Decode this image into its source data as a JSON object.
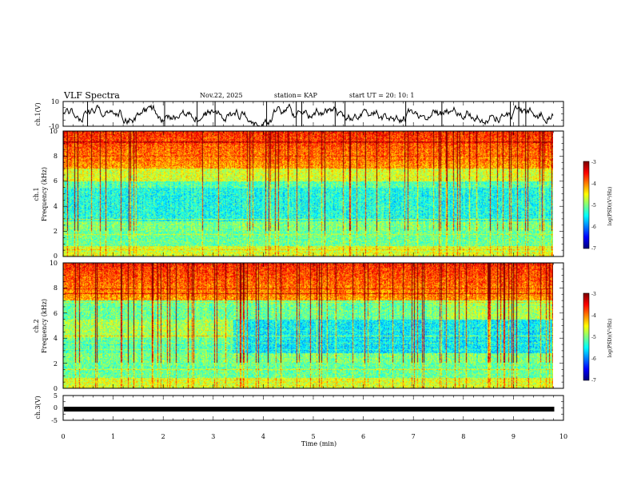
{
  "header": {
    "title": "VLF Spectra",
    "date": "Nov.22, 2025",
    "station": "station= KAP",
    "start": "start  UT  =   20: 10: 1"
  },
  "chart_data": [
    {
      "type": "line",
      "id": "ch1-waveform",
      "ylabel": "ch.1(V)",
      "ylim": [
        -10,
        10
      ],
      "yticks": [
        "10",
        "-10"
      ],
      "xlim": [
        0,
        10
      ],
      "description_values": "noisy waveform between about -10 and 10 V"
    },
    {
      "type": "heatmap",
      "id": "ch1-spectrogram",
      "ylabel": "ch.1\nFrequency (kHz)",
      "ylabel_top": "ch.1",
      "ylabel_bottom": "Frequency (kHz)",
      "ylim": [
        0,
        10
      ],
      "yticks": [
        "0",
        "2",
        "4",
        "6",
        "8",
        "10"
      ],
      "xlim": [
        0,
        10
      ],
      "data_end_min": 9.8,
      "colorbar": {
        "label": "log(PSD)(V²/Hz)",
        "ticks": [
          "-3",
          "-4",
          "-5",
          "-6",
          "-7"
        ],
        "range": [
          -7,
          -3
        ]
      }
    },
    {
      "type": "heatmap",
      "id": "ch2-spectrogram",
      "ylabel_top": "ch.2",
      "ylabel_bottom": "Frequency (kHz)",
      "ylim": [
        0,
        10
      ],
      "yticks": [
        "0",
        "2",
        "4",
        "6",
        "8",
        "10"
      ],
      "xlim": [
        0,
        10
      ],
      "data_end_min": 9.8,
      "colorbar": {
        "label": "log(PSD)(V²/Hz)",
        "ticks": [
          "-3",
          "-4",
          "-5",
          "-6",
          "-7"
        ],
        "range": [
          -7,
          -3
        ]
      }
    },
    {
      "type": "line",
      "id": "ch3-waveform",
      "ylabel": "ch.3(V)",
      "ylim": [
        -5,
        5
      ],
      "yticks": [
        "5",
        "0",
        "-5"
      ],
      "xlim": [
        0,
        10
      ],
      "value": -0.5,
      "xlabel": "Time  (min)",
      "xticks": [
        "0",
        "1",
        "2",
        "3",
        "4",
        "5",
        "6",
        "7",
        "8",
        "9",
        "10"
      ]
    }
  ]
}
